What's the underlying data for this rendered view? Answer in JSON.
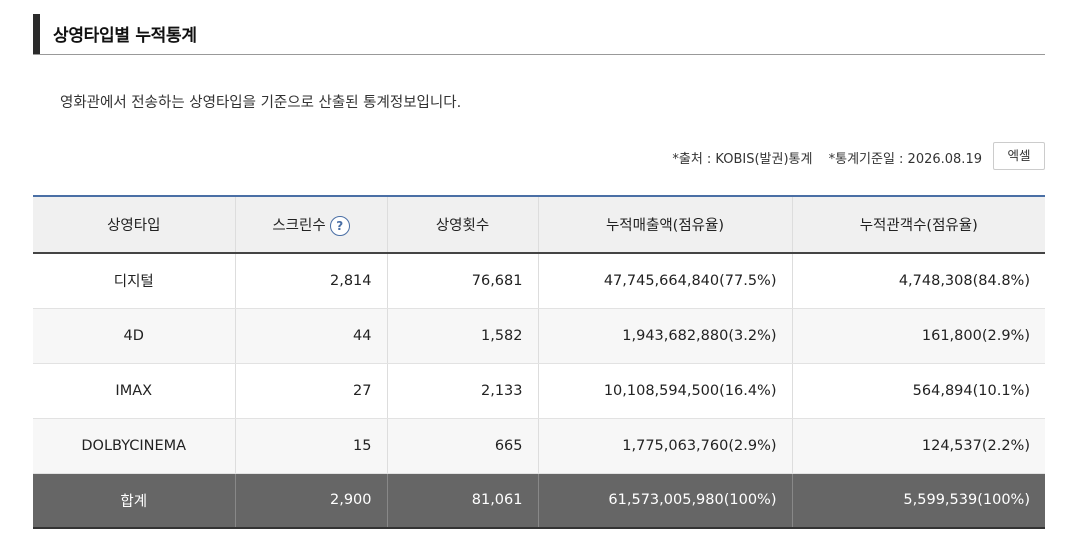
{
  "page": {
    "title": "상영타입별 누적통계",
    "description": "영화관에서 전송하는 상영타입을 기준으로 산출된 통계정보입니다.",
    "source": "*출처 : KOBIS(발권)통계",
    "base_date": "*통계기준일 : 2026.08.19",
    "excel_label": "엑셀"
  },
  "table": {
    "headers": [
      "상영타입",
      "스크린수",
      "상영횟수",
      "누적매출액(점유율)",
      "누적관객수(점유율)"
    ],
    "help_icon_glyph": "?",
    "rows": [
      {
        "type": "디지털",
        "screens": "2,814",
        "shows": "76,681",
        "sales": "47,745,664,840(77.5%)",
        "audience": "4,748,308(84.8%)"
      },
      {
        "type": "4D",
        "screens": "44",
        "shows": "1,582",
        "sales": "1,943,682,880(3.2%)",
        "audience": "161,800(2.9%)"
      },
      {
        "type": "IMAX",
        "screens": "27",
        "shows": "2,133",
        "sales": "10,108,594,500(16.4%)",
        "audience": "564,894(10.1%)"
      },
      {
        "type": "DOLBYCINEMA",
        "screens": "15",
        "shows": "665",
        "sales": "1,775,063,760(2.9%)",
        "audience": "124,537(2.2%)"
      }
    ],
    "total": {
      "type": "합계",
      "screens": "2,900",
      "shows": "81,061",
      "sales": "61,573,005,980(100%)",
      "audience": "5,599,539(100%)"
    }
  }
}
